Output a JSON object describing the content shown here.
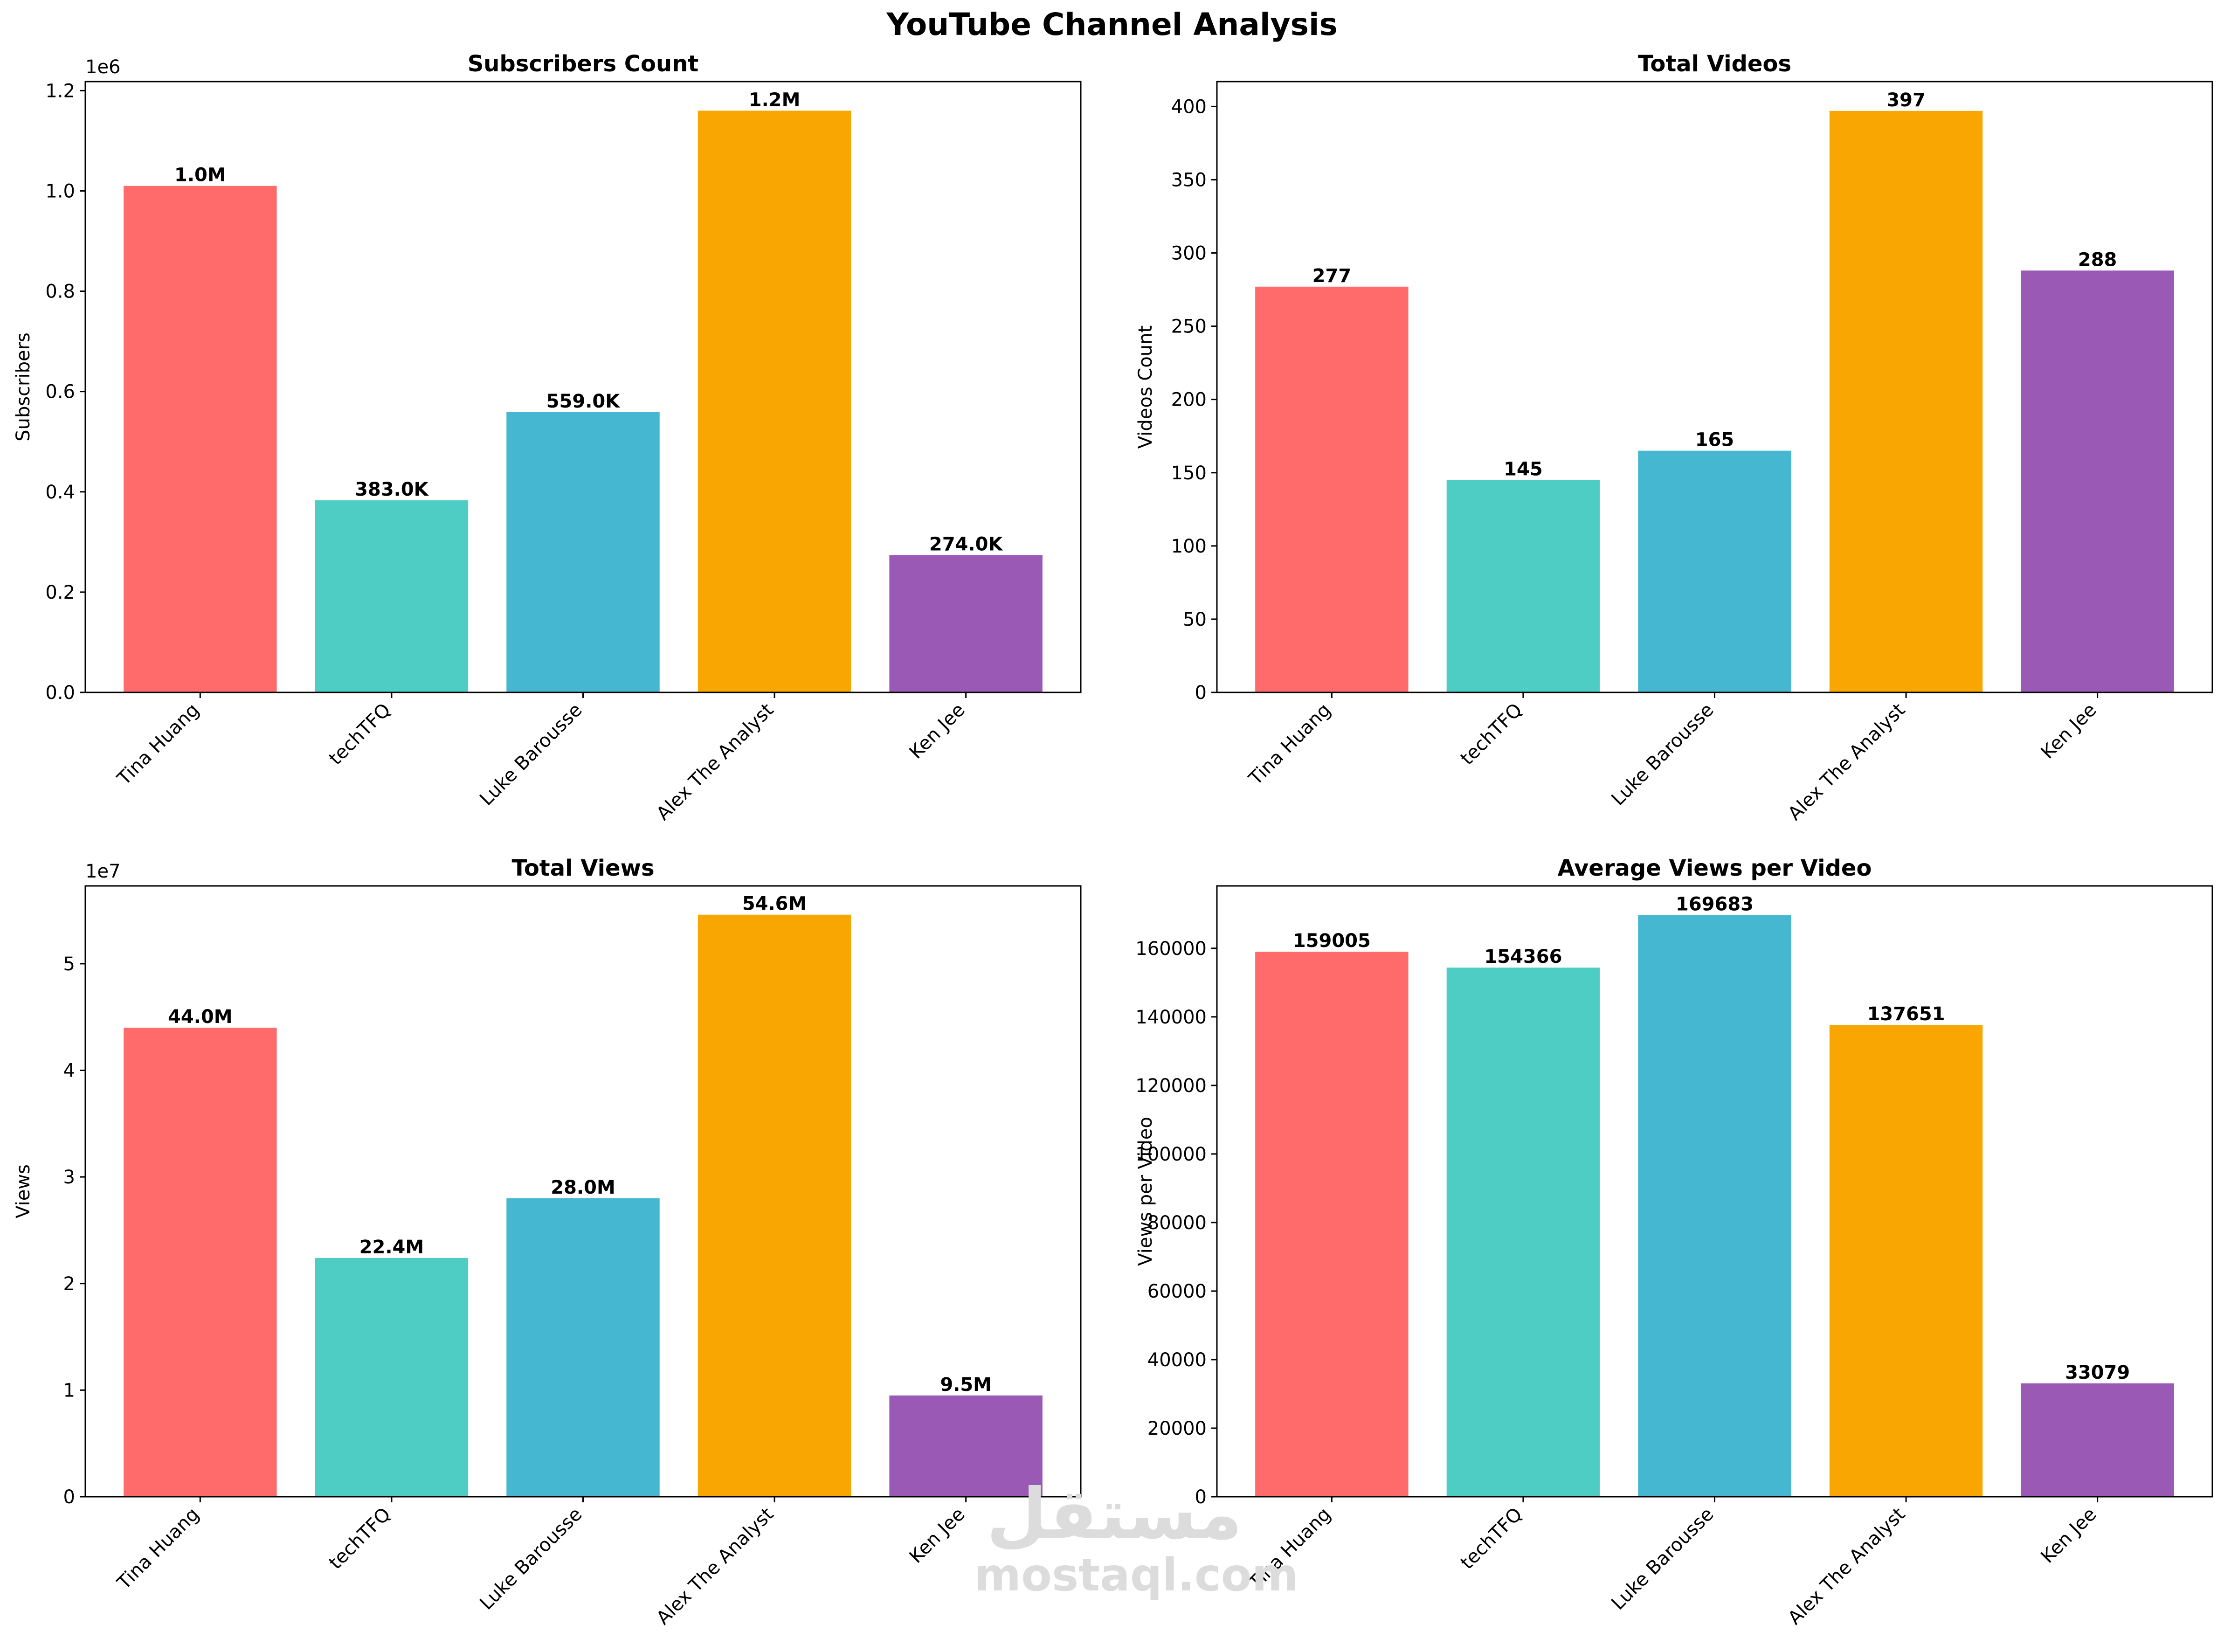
{
  "figure": {
    "title": "YouTube Channel Analysis"
  },
  "watermark": {
    "arabic": "مستقل",
    "latin": "mostaql.com"
  },
  "colors": {
    "bars": [
      "#FF6B6B",
      "#4ECDC4",
      "#45B7D1",
      "#F9A602",
      "#9B59B6"
    ],
    "axis": "#000000"
  },
  "chart_data": [
    {
      "type": "bar",
      "title": "Subscribers Count",
      "xlabel": "",
      "ylabel": "Subscribers",
      "offset_label": "1e6",
      "categories": [
        "Tina Huang",
        "techTFQ",
        "Luke Barousse",
        "Alex The Analyst",
        "Ken Jee"
      ],
      "values": [
        1010000,
        383000,
        559000,
        1160000,
        274000
      ],
      "data_labels": [
        "1.0M",
        "383.0K",
        "559.0K",
        "1.2M",
        "274.0K"
      ],
      "ylim": [
        0,
        1218000
      ],
      "yticks": [
        0,
        200000,
        400000,
        600000,
        800000,
        1000000,
        1200000
      ],
      "ytick_labels": [
        "0.0",
        "0.2",
        "0.4",
        "0.6",
        "0.8",
        "1.0",
        "1.2"
      ],
      "grid": false
    },
    {
      "type": "bar",
      "title": "Total Videos",
      "xlabel": "",
      "ylabel": "Videos Count",
      "offset_label": "",
      "categories": [
        "Tina Huang",
        "techTFQ",
        "Luke Barousse",
        "Alex The Analyst",
        "Ken Jee"
      ],
      "values": [
        277,
        145,
        165,
        397,
        288
      ],
      "data_labels": [
        "277",
        "145",
        "165",
        "397",
        "288"
      ],
      "ylim": [
        0,
        417
      ],
      "yticks": [
        0,
        50,
        100,
        150,
        200,
        250,
        300,
        350,
        400
      ],
      "ytick_labels": [
        "0",
        "50",
        "100",
        "150",
        "200",
        "250",
        "300",
        "350",
        "400"
      ],
      "grid": false
    },
    {
      "type": "bar",
      "title": "Total Views",
      "xlabel": "",
      "ylabel": "Views",
      "offset_label": "1e7",
      "categories": [
        "Tina Huang",
        "techTFQ",
        "Luke Barousse",
        "Alex The Analyst",
        "Ken Jee"
      ],
      "values": [
        44000000,
        22400000,
        28000000,
        54600000,
        9500000
      ],
      "data_labels": [
        "44.0M",
        "22.4M",
        "28.0M",
        "54.6M",
        "9.5M"
      ],
      "ylim": [
        0,
        57300000
      ],
      "yticks": [
        0,
        10000000,
        20000000,
        30000000,
        40000000,
        50000000
      ],
      "ytick_labels": [
        "0",
        "1",
        "2",
        "3",
        "4",
        "5"
      ],
      "grid": false
    },
    {
      "type": "bar",
      "title": "Average Views per Video",
      "xlabel": "",
      "ylabel": "Views per Video",
      "offset_label": "",
      "categories": [
        "Tina Huang",
        "techTFQ",
        "Luke Barousse",
        "Alex The Analyst",
        "Ken Jee"
      ],
      "values": [
        159005,
        154366,
        169683,
        137651,
        33079
      ],
      "data_labels": [
        "159005",
        "154366",
        "169683",
        "137651",
        "33079"
      ],
      "ylim": [
        0,
        178200
      ],
      "yticks": [
        0,
        20000,
        40000,
        60000,
        80000,
        100000,
        120000,
        140000,
        160000
      ],
      "ytick_labels": [
        "0",
        "20000",
        "40000",
        "60000",
        "80000",
        "100000",
        "120000",
        "140000",
        "160000"
      ],
      "grid": false
    }
  ]
}
